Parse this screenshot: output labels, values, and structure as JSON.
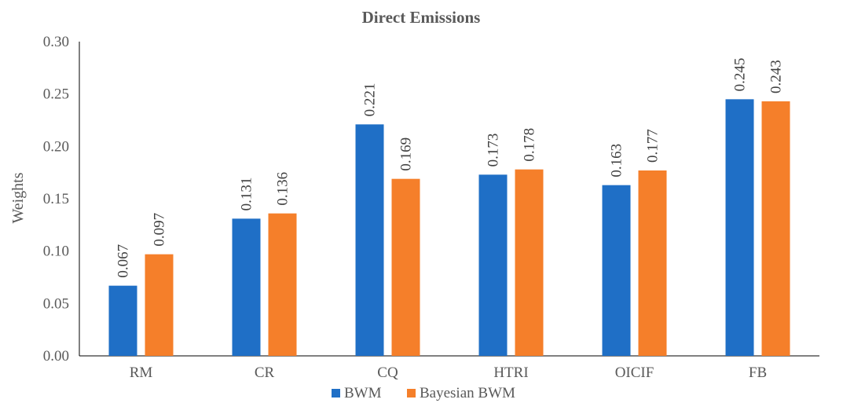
{
  "chart_data": {
    "type": "bar",
    "title": "Direct Emissions",
    "xlabel": "",
    "ylabel": "Weights",
    "ylim": [
      0,
      0.3
    ],
    "yticks": [
      "0.00",
      "0.05",
      "0.10",
      "0.15",
      "0.20",
      "0.25",
      "0.30"
    ],
    "categories": [
      "RM",
      "CR",
      "CQ",
      "HTRI",
      "OICIF",
      "FB"
    ],
    "series": [
      {
        "name": "BWM",
        "color": "#1f6fc6",
        "values": [
          0.067,
          0.131,
          0.221,
          0.173,
          0.163,
          0.245
        ],
        "labels": [
          "0.067",
          "0.131",
          "0.221",
          "0.173",
          "0.163",
          "0.245"
        ]
      },
      {
        "name": "Bayesian BWM",
        "color": "#f57f2a",
        "values": [
          0.097,
          0.136,
          0.169,
          0.178,
          0.177,
          0.243
        ],
        "labels": [
          "0.097",
          "0.136",
          "0.169",
          "0.178",
          "0.177",
          "0.243"
        ]
      }
    ],
    "grid": false,
    "legend": "bottom"
  }
}
